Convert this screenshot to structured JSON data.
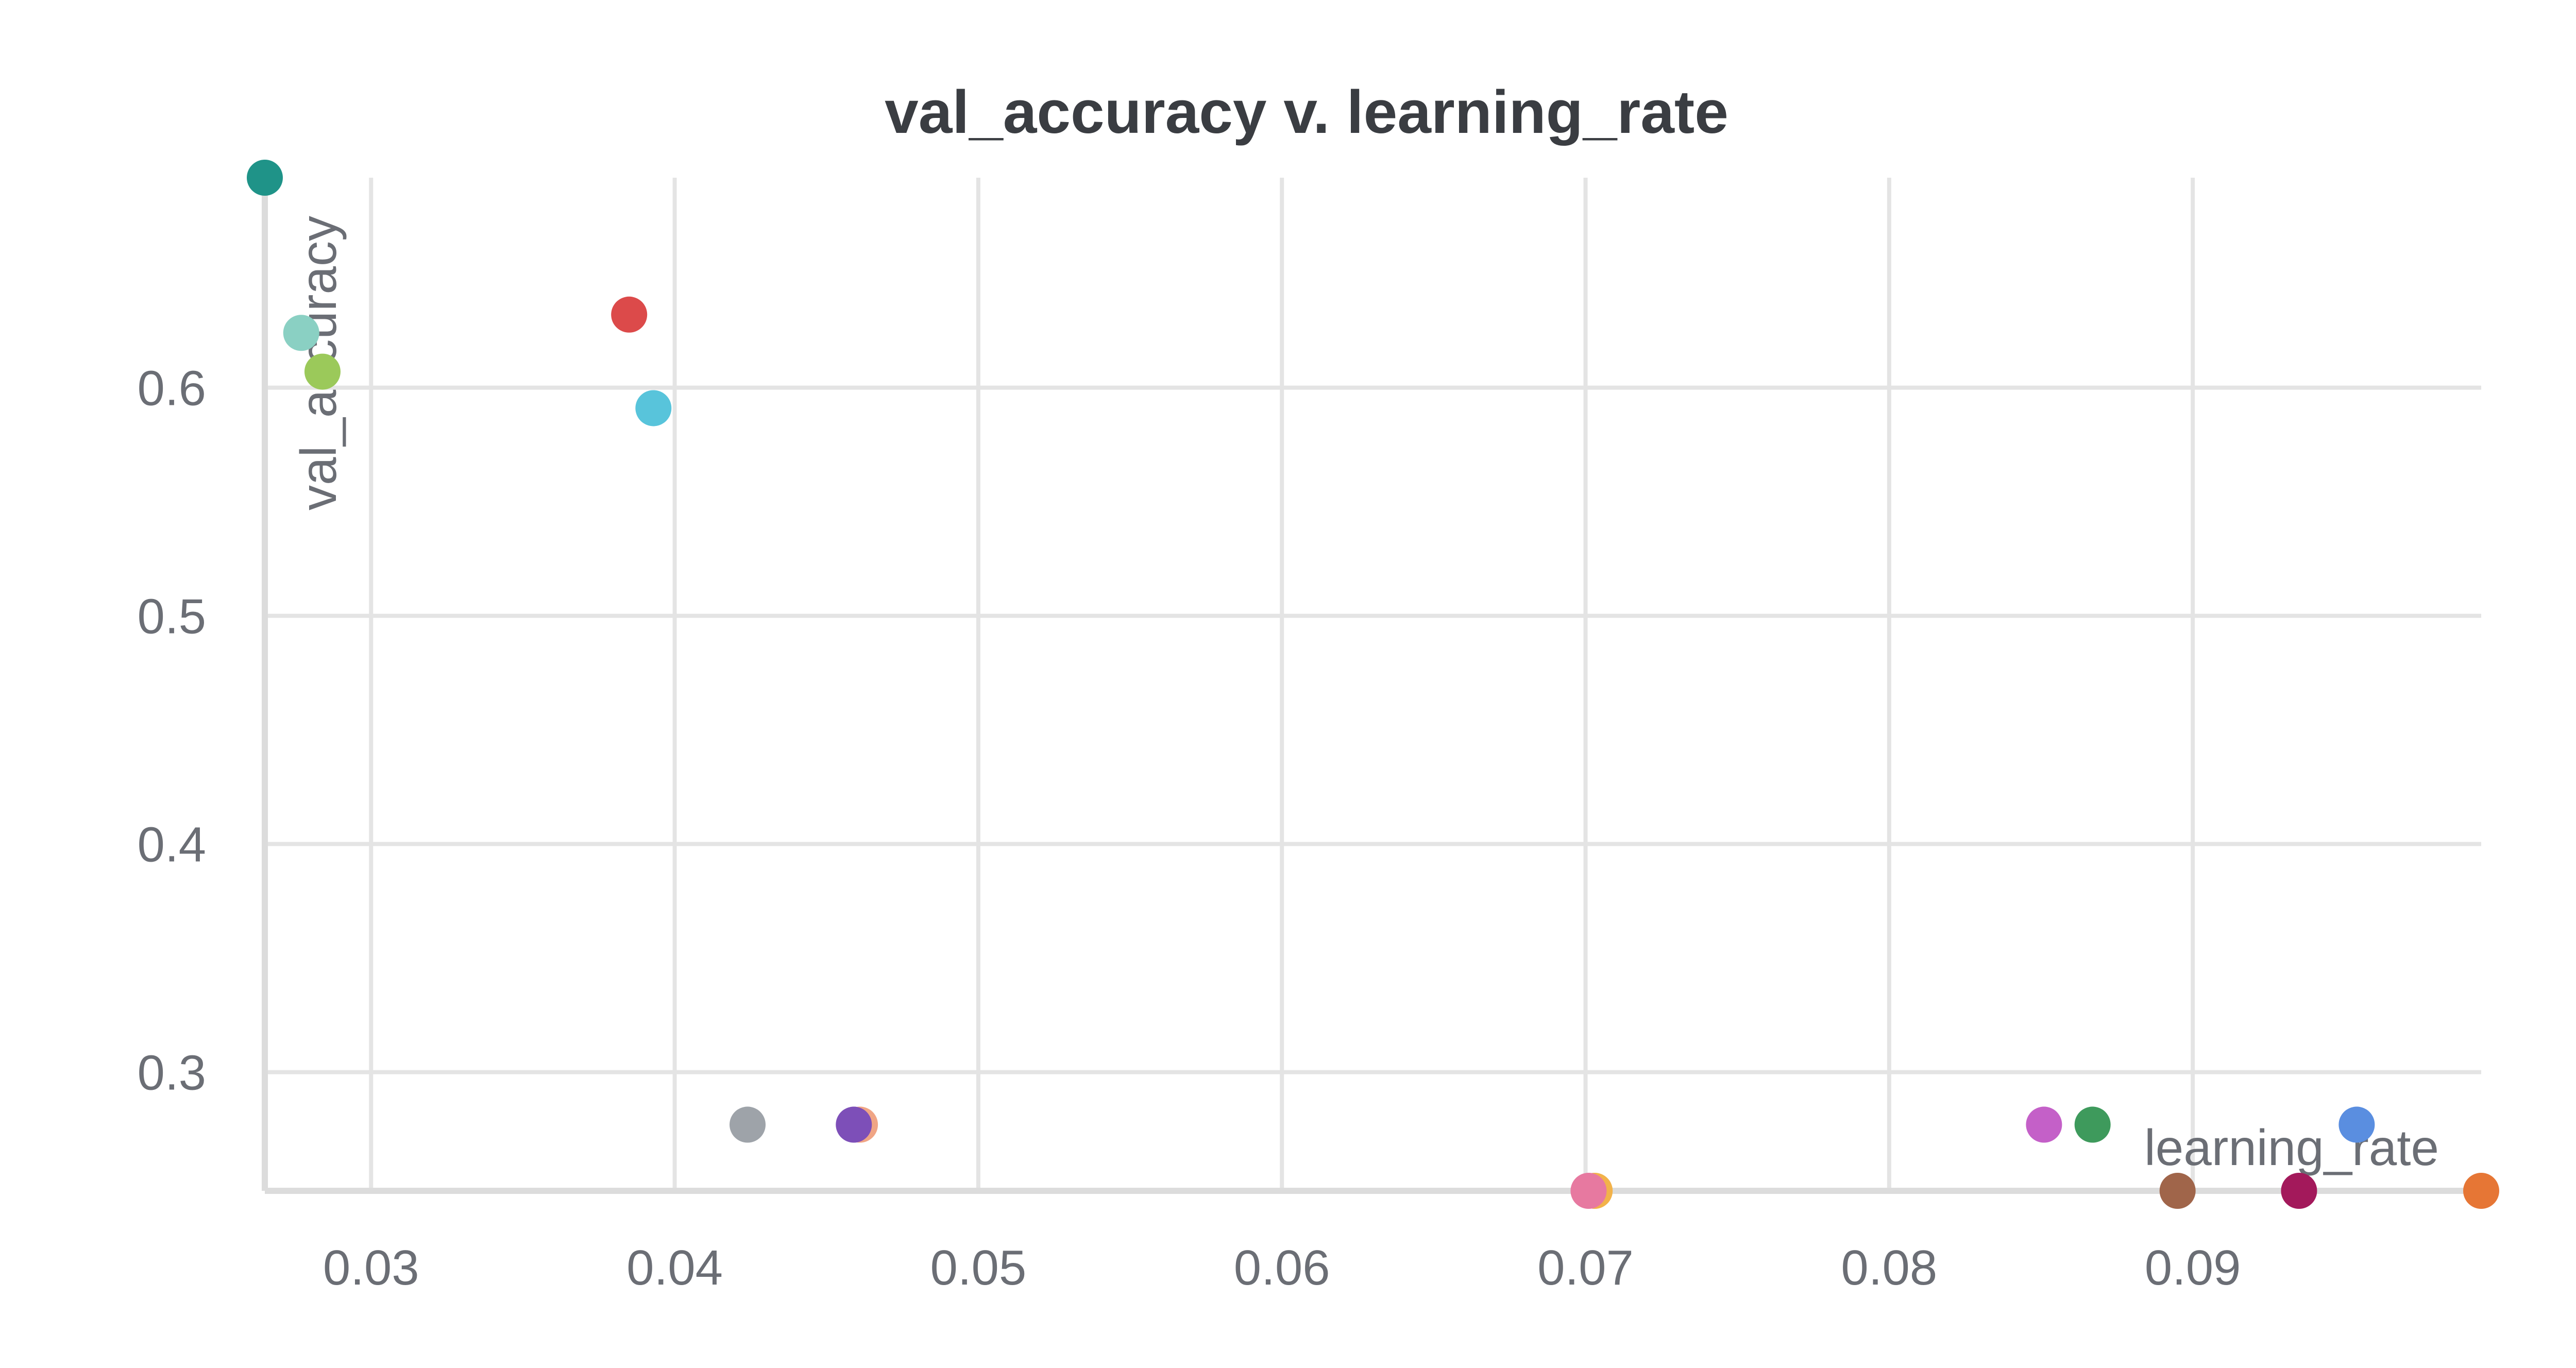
{
  "chart_data": {
    "type": "scatter",
    "title": "val_accuracy v. learning_rate",
    "xlabel": "learning_rate",
    "ylabel": "val_accuracy",
    "xlim": [
      0.0265,
      0.0995
    ],
    "ylim": [
      0.248,
      0.692
    ],
    "x_ticks": [
      0.03,
      0.04,
      0.05,
      0.06,
      0.07,
      0.08,
      0.09
    ],
    "x_tick_labels": [
      "0.03",
      "0.04",
      "0.05",
      "0.06",
      "0.07",
      "0.08",
      "0.09"
    ],
    "y_ticks": [
      0.3,
      0.4,
      0.5,
      0.6
    ],
    "y_tick_labels": [
      "0.3",
      "0.4",
      "0.5",
      "0.6"
    ],
    "grid": true,
    "points": [
      {
        "x": 0.0265,
        "y": 0.692,
        "color": "#1f9388"
      },
      {
        "x": 0.0277,
        "y": 0.624,
        "color": "#8ad0c3"
      },
      {
        "x": 0.0284,
        "y": 0.607,
        "color": "#9bc95a"
      },
      {
        "x": 0.0385,
        "y": 0.632,
        "color": "#dc4a4a"
      },
      {
        "x": 0.0393,
        "y": 0.591,
        "color": "#58c4db"
      },
      {
        "x": 0.0424,
        "y": 0.277,
        "color": "#9ea3a9"
      },
      {
        "x": 0.0461,
        "y": 0.277,
        "color": "#f0a585"
      },
      {
        "x": 0.0459,
        "y": 0.277,
        "color": "#7d4fb8"
      },
      {
        "x": 0.0703,
        "y": 0.248,
        "color": "#f2b24a"
      },
      {
        "x": 0.0701,
        "y": 0.248,
        "color": "#e779a0"
      },
      {
        "x": 0.0851,
        "y": 0.277,
        "color": "#c460c8"
      },
      {
        "x": 0.0867,
        "y": 0.277,
        "color": "#3e9a5c"
      },
      {
        "x": 0.0895,
        "y": 0.248,
        "color": "#a0654a"
      },
      {
        "x": 0.0935,
        "y": 0.248,
        "color": "#a3195b"
      },
      {
        "x": 0.0954,
        "y": 0.277,
        "color": "#5a8ee0"
      },
      {
        "x": 0.0995,
        "y": 0.248,
        "color": "#e67635"
      }
    ]
  }
}
